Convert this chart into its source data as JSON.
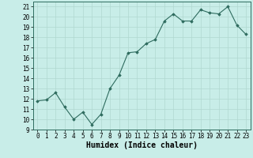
{
  "x": [
    0,
    1,
    2,
    3,
    4,
    5,
    6,
    7,
    8,
    9,
    10,
    11,
    12,
    13,
    14,
    15,
    16,
    17,
    18,
    19,
    20,
    21,
    22,
    23
  ],
  "y": [
    11.8,
    11.9,
    12.6,
    11.2,
    10.0,
    10.7,
    9.5,
    10.5,
    13.0,
    14.3,
    16.5,
    16.6,
    17.4,
    17.8,
    19.6,
    20.3,
    19.6,
    19.6,
    20.7,
    20.4,
    20.3,
    21.0,
    19.2,
    18.3
  ],
  "title": "",
  "xlabel": "Humidex (Indice chaleur)",
  "ylabel": "",
  "xlim": [
    -0.5,
    23.5
  ],
  "ylim": [
    9,
    21.5
  ],
  "yticks": [
    9,
    10,
    11,
    12,
    13,
    14,
    15,
    16,
    17,
    18,
    19,
    20,
    21
  ],
  "xticks": [
    0,
    1,
    2,
    3,
    4,
    5,
    6,
    7,
    8,
    9,
    10,
    11,
    12,
    13,
    14,
    15,
    16,
    17,
    18,
    19,
    20,
    21,
    22,
    23
  ],
  "line_color": "#2e6b5e",
  "marker": "D",
  "marker_size": 1.8,
  "bg_color": "#c8ede8",
  "grid_color": "#b0d8d0",
  "label_fontsize": 7,
  "tick_fontsize": 5.5
}
